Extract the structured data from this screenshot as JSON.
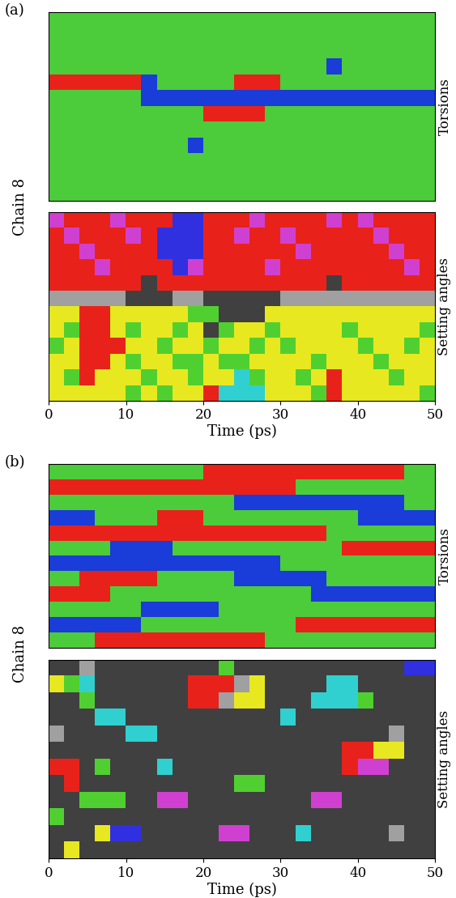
{
  "chart_data": [
    {
      "type": "heatmap",
      "panel": "(a)",
      "side_label": "Torsions",
      "ylabel": "Chain 8",
      "xlim": [
        0,
        50
      ],
      "xticks": [
        0,
        10,
        20,
        30,
        40,
        50
      ],
      "tick_labels": false,
      "colors": [
        "#4ccc3a",
        "#e8221a",
        "#1a3cd8"
      ],
      "cells": [
        [
          0,
          0,
          0,
          0,
          0,
          0,
          0,
          0,
          0,
          0,
          0,
          0,
          0,
          0,
          0,
          0,
          0,
          0,
          0,
          0,
          0,
          0,
          0,
          0,
          0
        ],
        [
          0,
          0,
          0,
          0,
          0,
          0,
          0,
          0,
          0,
          0,
          0,
          0,
          0,
          0,
          0,
          0,
          0,
          0,
          0,
          0,
          0,
          0,
          0,
          0,
          0
        ],
        [
          0,
          0,
          0,
          0,
          0,
          0,
          0,
          0,
          0,
          0,
          0,
          0,
          0,
          0,
          0,
          0,
          0,
          0,
          0,
          0,
          0,
          0,
          0,
          0,
          0
        ],
        [
          0,
          0,
          0,
          0,
          0,
          0,
          0,
          0,
          0,
          0,
          0,
          0,
          0,
          0,
          0,
          0,
          0,
          0,
          2,
          0,
          0,
          0,
          0,
          0,
          0
        ],
        [
          1,
          1,
          1,
          1,
          1,
          1,
          2,
          0,
          0,
          0,
          0,
          0,
          1,
          1,
          1,
          0,
          0,
          0,
          0,
          0,
          0,
          0,
          0,
          0,
          0
        ],
        [
          0,
          0,
          0,
          0,
          0,
          0,
          2,
          2,
          2,
          2,
          2,
          2,
          2,
          2,
          2,
          2,
          2,
          2,
          2,
          2,
          2,
          2,
          2,
          2,
          2
        ],
        [
          0,
          0,
          0,
          0,
          0,
          0,
          0,
          0,
          0,
          0,
          1,
          1,
          1,
          1,
          0,
          0,
          0,
          0,
          0,
          0,
          0,
          0,
          0,
          0,
          0
        ],
        [
          0,
          0,
          0,
          0,
          0,
          0,
          0,
          0,
          0,
          0,
          0,
          0,
          0,
          0,
          0,
          0,
          0,
          0,
          0,
          0,
          0,
          0,
          0,
          0,
          0
        ],
        [
          0,
          0,
          0,
          0,
          0,
          0,
          0,
          0,
          0,
          2,
          0,
          0,
          0,
          0,
          0,
          0,
          0,
          0,
          0,
          0,
          0,
          0,
          0,
          0,
          0
        ],
        [
          0,
          0,
          0,
          0,
          0,
          0,
          0,
          0,
          0,
          0,
          0,
          0,
          0,
          0,
          0,
          0,
          0,
          0,
          0,
          0,
          0,
          0,
          0,
          0,
          0
        ],
        [
          0,
          0,
          0,
          0,
          0,
          0,
          0,
          0,
          0,
          0,
          0,
          0,
          0,
          0,
          0,
          0,
          0,
          0,
          0,
          0,
          0,
          0,
          0,
          0,
          0
        ],
        [
          0,
          0,
          0,
          0,
          0,
          0,
          0,
          0,
          0,
          0,
          0,
          0,
          0,
          0,
          0,
          0,
          0,
          0,
          0,
          0,
          0,
          0,
          0,
          0,
          0
        ]
      ]
    },
    {
      "type": "heatmap",
      "side_label": "Setting angles",
      "xlabel": "Time (ps)",
      "xlim": [
        0,
        50
      ],
      "xticks": [
        0,
        10,
        20,
        30,
        40,
        50
      ],
      "tick_labels": "x",
      "colors": [
        "#e8221a",
        "#d040d0",
        "#3030e0",
        "#e8e820",
        "#50d030",
        "#30d0d0",
        "#404040",
        "#a0a0a0"
      ],
      "cells": [
        [
          1,
          0,
          0,
          0,
          1,
          0,
          0,
          0,
          2,
          2,
          0,
          0,
          0,
          1,
          0,
          0,
          0,
          0,
          1,
          0,
          1,
          0,
          0,
          0,
          0
        ],
        [
          0,
          1,
          0,
          0,
          0,
          1,
          0,
          2,
          2,
          2,
          0,
          0,
          1,
          0,
          0,
          1,
          0,
          0,
          0,
          0,
          0,
          1,
          0,
          0,
          0
        ],
        [
          0,
          0,
          1,
          0,
          0,
          0,
          0,
          2,
          2,
          2,
          0,
          0,
          0,
          0,
          0,
          0,
          1,
          0,
          0,
          0,
          0,
          0,
          1,
          0,
          0
        ],
        [
          0,
          0,
          0,
          1,
          0,
          0,
          0,
          0,
          2,
          1,
          0,
          0,
          0,
          0,
          1,
          0,
          0,
          0,
          0,
          0,
          0,
          0,
          0,
          1,
          0
        ],
        [
          0,
          0,
          0,
          0,
          0,
          0,
          6,
          0,
          0,
          0,
          0,
          0,
          0,
          0,
          0,
          0,
          0,
          0,
          6,
          0,
          0,
          0,
          0,
          0,
          0
        ],
        [
          7,
          7,
          7,
          7,
          7,
          6,
          6,
          6,
          7,
          7,
          6,
          6,
          6,
          6,
          6,
          7,
          7,
          7,
          7,
          7,
          7,
          7,
          7,
          7,
          7
        ],
        [
          3,
          3,
          0,
          0,
          3,
          3,
          3,
          3,
          3,
          4,
          4,
          6,
          6,
          6,
          3,
          3,
          3,
          3,
          3,
          3,
          3,
          3,
          3,
          3,
          3
        ],
        [
          3,
          4,
          0,
          0,
          3,
          4,
          3,
          3,
          4,
          3,
          6,
          4,
          3,
          3,
          4,
          3,
          3,
          3,
          3,
          4,
          3,
          3,
          3,
          3,
          4
        ],
        [
          4,
          3,
          0,
          0,
          0,
          3,
          3,
          4,
          3,
          3,
          4,
          3,
          3,
          4,
          3,
          4,
          3,
          3,
          3,
          3,
          4,
          3,
          3,
          4,
          3
        ],
        [
          3,
          3,
          0,
          0,
          3,
          4,
          3,
          3,
          4,
          4,
          3,
          4,
          4,
          3,
          3,
          3,
          3,
          4,
          3,
          3,
          3,
          4,
          3,
          3,
          3
        ],
        [
          3,
          4,
          0,
          3,
          3,
          3,
          4,
          3,
          3,
          4,
          3,
          3,
          5,
          4,
          3,
          3,
          4,
          3,
          0,
          3,
          3,
          3,
          4,
          3,
          3
        ],
        [
          3,
          3,
          3,
          3,
          3,
          4,
          3,
          4,
          3,
          3,
          0,
          5,
          5,
          5,
          3,
          3,
          3,
          4,
          0,
          3,
          3,
          3,
          3,
          3,
          4
        ]
      ]
    },
    {
      "type": "heatmap",
      "panel": "(b)",
      "side_label": "Torsions",
      "ylabel": "Chain 8",
      "xlim": [
        0,
        50
      ],
      "xticks": [
        0,
        10,
        20,
        30,
        40,
        50
      ],
      "tick_labels": false,
      "colors": [
        "#4ccc3a",
        "#e8221a",
        "#1a3cd8"
      ],
      "cells": [
        [
          0,
          0,
          0,
          0,
          0,
          0,
          0,
          0,
          0,
          0,
          1,
          1,
          1,
          1,
          1,
          1,
          1,
          1,
          1,
          1,
          1,
          1,
          1,
          0,
          0
        ],
        [
          1,
          1,
          1,
          1,
          1,
          1,
          1,
          1,
          1,
          1,
          1,
          1,
          1,
          1,
          1,
          1,
          0,
          0,
          0,
          0,
          0,
          0,
          0,
          0,
          0
        ],
        [
          0,
          0,
          0,
          0,
          0,
          0,
          0,
          0,
          0,
          0,
          0,
          0,
          2,
          2,
          2,
          2,
          2,
          2,
          2,
          2,
          2,
          2,
          2,
          0,
          0
        ],
        [
          2,
          2,
          2,
          0,
          0,
          0,
          0,
          1,
          1,
          1,
          0,
          0,
          0,
          0,
          0,
          0,
          0,
          0,
          0,
          0,
          2,
          2,
          2,
          2,
          2
        ],
        [
          1,
          1,
          1,
          1,
          1,
          1,
          1,
          1,
          1,
          1,
          1,
          1,
          1,
          1,
          1,
          1,
          1,
          1,
          0,
          0,
          0,
          0,
          0,
          0,
          0
        ],
        [
          0,
          0,
          0,
          0,
          2,
          2,
          2,
          2,
          0,
          0,
          0,
          0,
          0,
          0,
          0,
          0,
          0,
          0,
          0,
          1,
          1,
          1,
          1,
          1,
          1
        ],
        [
          2,
          2,
          2,
          2,
          2,
          2,
          2,
          2,
          2,
          2,
          2,
          2,
          2,
          2,
          2,
          0,
          0,
          0,
          0,
          0,
          0,
          0,
          0,
          0,
          0
        ],
        [
          0,
          0,
          1,
          1,
          1,
          1,
          1,
          0,
          0,
          0,
          0,
          0,
          2,
          2,
          2,
          2,
          2,
          2,
          0,
          0,
          0,
          0,
          0,
          0,
          0
        ],
        [
          1,
          1,
          1,
          1,
          0,
          0,
          0,
          0,
          0,
          0,
          0,
          0,
          0,
          0,
          0,
          0,
          0,
          2,
          2,
          2,
          2,
          2,
          2,
          2,
          2
        ],
        [
          0,
          0,
          0,
          0,
          0,
          0,
          2,
          2,
          2,
          2,
          2,
          0,
          0,
          0,
          0,
          0,
          0,
          0,
          0,
          0,
          0,
          0,
          0,
          0,
          0
        ],
        [
          2,
          2,
          2,
          2,
          2,
          2,
          0,
          0,
          0,
          0,
          0,
          0,
          0,
          0,
          0,
          0,
          1,
          1,
          1,
          1,
          1,
          1,
          1,
          1,
          1
        ],
        [
          0,
          0,
          0,
          1,
          1,
          1,
          1,
          1,
          1,
          1,
          1,
          1,
          1,
          1,
          0,
          0,
          0,
          0,
          0,
          0,
          0,
          0,
          0,
          0,
          0
        ]
      ]
    },
    {
      "type": "heatmap",
      "side_label": "Setting angles",
      "xlabel": "Time (ps)",
      "xlim": [
        0,
        50
      ],
      "xticks": [
        0,
        10,
        20,
        30,
        40,
        50
      ],
      "tick_labels": "x",
      "colors": [
        "#e8221a",
        "#d040d0",
        "#3030e0",
        "#e8e820",
        "#50d030",
        "#30d0d0",
        "#404040",
        "#a0a0a0"
      ],
      "cells": [
        [
          6,
          6,
          7,
          6,
          6,
          6,
          6,
          6,
          6,
          6,
          6,
          4,
          6,
          6,
          6,
          6,
          6,
          6,
          6,
          6,
          6,
          6,
          6,
          2,
          2
        ],
        [
          3,
          4,
          5,
          6,
          6,
          6,
          6,
          6,
          6,
          0,
          0,
          0,
          7,
          3,
          6,
          6,
          6,
          6,
          5,
          5,
          6,
          6,
          6,
          6,
          6
        ],
        [
          6,
          6,
          4,
          6,
          6,
          6,
          6,
          6,
          6,
          0,
          0,
          7,
          3,
          3,
          6,
          6,
          6,
          5,
          5,
          5,
          4,
          6,
          6,
          6,
          6
        ],
        [
          6,
          6,
          6,
          5,
          5,
          6,
          6,
          6,
          6,
          6,
          6,
          6,
          6,
          6,
          6,
          5,
          6,
          6,
          6,
          6,
          6,
          6,
          6,
          6,
          6
        ],
        [
          7,
          6,
          6,
          6,
          6,
          5,
          5,
          6,
          6,
          6,
          6,
          6,
          6,
          6,
          6,
          6,
          6,
          6,
          6,
          6,
          6,
          6,
          7,
          6,
          6
        ],
        [
          6,
          6,
          6,
          6,
          6,
          6,
          6,
          6,
          6,
          6,
          6,
          6,
          6,
          6,
          6,
          6,
          6,
          6,
          6,
          0,
          0,
          3,
          3,
          6,
          6
        ],
        [
          0,
          0,
          6,
          4,
          6,
          6,
          6,
          5,
          6,
          6,
          6,
          6,
          6,
          6,
          6,
          6,
          6,
          6,
          6,
          0,
          1,
          1,
          6,
          6,
          6
        ],
        [
          6,
          0,
          6,
          6,
          6,
          6,
          6,
          6,
          6,
          6,
          6,
          6,
          4,
          4,
          6,
          6,
          6,
          6,
          6,
          6,
          6,
          6,
          6,
          6,
          6
        ],
        [
          6,
          6,
          4,
          4,
          4,
          6,
          6,
          1,
          1,
          6,
          6,
          6,
          6,
          6,
          6,
          6,
          6,
          1,
          1,
          6,
          6,
          6,
          6,
          6,
          6
        ],
        [
          4,
          6,
          6,
          6,
          6,
          6,
          6,
          6,
          6,
          6,
          6,
          6,
          6,
          6,
          6,
          6,
          6,
          6,
          6,
          6,
          6,
          6,
          6,
          6,
          6
        ],
        [
          6,
          6,
          6,
          3,
          2,
          2,
          6,
          6,
          6,
          6,
          6,
          1,
          1,
          6,
          6,
          6,
          5,
          6,
          6,
          6,
          6,
          6,
          7,
          6,
          6
        ],
        [
          6,
          3,
          6,
          6,
          6,
          6,
          6,
          6,
          6,
          6,
          6,
          6,
          6,
          6,
          6,
          6,
          6,
          6,
          6,
          6,
          6,
          6,
          6,
          6,
          6
        ]
      ]
    }
  ]
}
